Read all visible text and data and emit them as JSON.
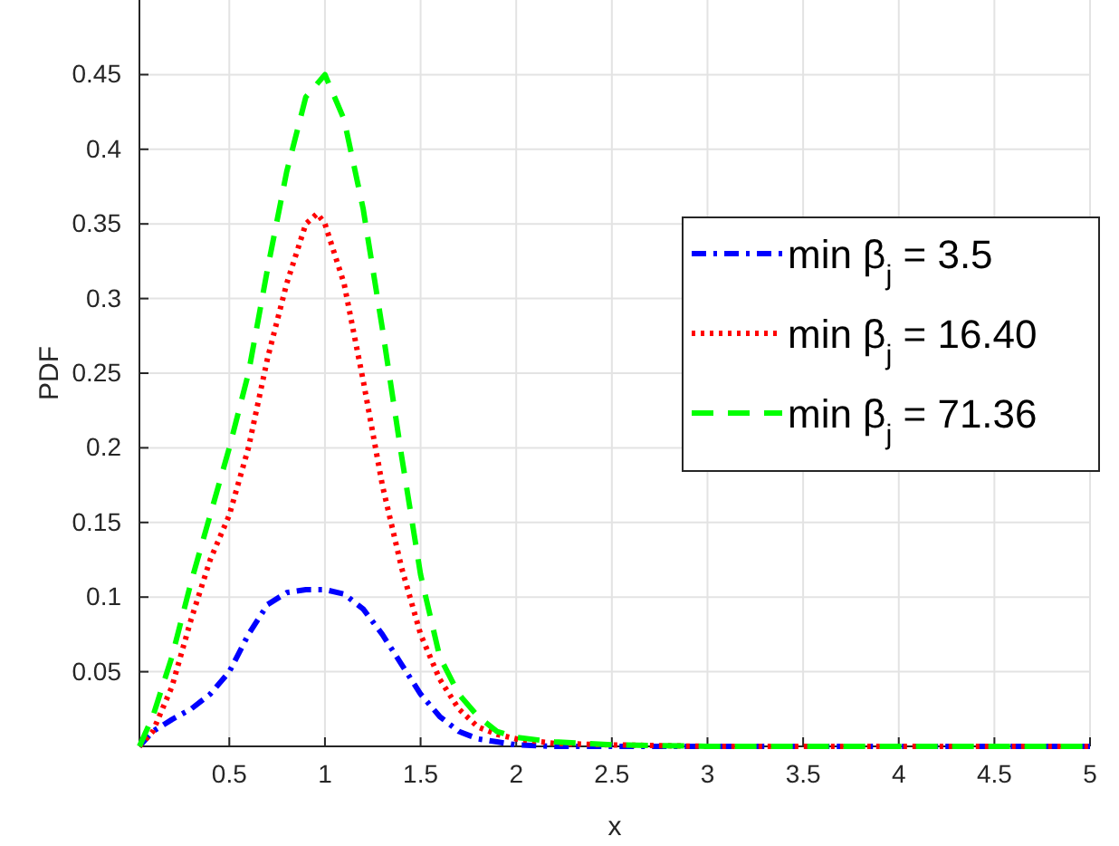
{
  "chart_data": {
    "type": "line",
    "xlabel": "x",
    "ylabel": "PDF",
    "xlim": [
      0.03,
      5
    ],
    "ylim": [
      0,
      0.5
    ],
    "xticks": [
      0.5,
      1,
      1.5,
      2,
      2.5,
      3,
      3.5,
      4,
      4.5,
      5
    ],
    "yticks": [
      0.05,
      0.1,
      0.15,
      0.2,
      0.25,
      0.3,
      0.35,
      0.4,
      0.45
    ],
    "grid": true,
    "legend": "right",
    "marker": "none",
    "series": [
      {
        "name": "min β$_{j}$ = 3.5",
        "color": "#0000ff",
        "line_style": "dashdot",
        "x": [
          0.03,
          0.1,
          0.2,
          0.3,
          0.4,
          0.5,
          0.6,
          0.7,
          0.8,
          0.9,
          1.0,
          1.1,
          1.2,
          1.3,
          1.4,
          1.5,
          1.6,
          1.7,
          1.8,
          1.9,
          2.0,
          2.2,
          2.5,
          3,
          5
        ],
        "values": [
          0,
          0.01,
          0.018,
          0.025,
          0.035,
          0.05,
          0.075,
          0.095,
          0.103,
          0.105,
          0.105,
          0.102,
          0.092,
          0.075,
          0.055,
          0.035,
          0.02,
          0.01,
          0.005,
          0.003,
          0.001,
          0,
          0,
          0,
          0
        ]
      },
      {
        "name": "min β$_{j}$ = 16.40",
        "color": "#ff0000",
        "line_style": "dotted",
        "x": [
          0.03,
          0.1,
          0.2,
          0.3,
          0.4,
          0.5,
          0.6,
          0.7,
          0.8,
          0.9,
          0.96,
          1.0,
          1.1,
          1.2,
          1.3,
          1.4,
          1.5,
          1.6,
          1.7,
          1.8,
          1.9,
          2.0,
          2.2,
          2.5,
          3,
          5
        ],
        "values": [
          0,
          0.01,
          0.04,
          0.085,
          0.125,
          0.155,
          0.2,
          0.26,
          0.31,
          0.35,
          0.357,
          0.35,
          0.31,
          0.245,
          0.175,
          0.12,
          0.075,
          0.045,
          0.025,
          0.013,
          0.008,
          0.005,
          0.002,
          0.001,
          0,
          0
        ]
      },
      {
        "name": "min β$_{j}$ = 71.36",
        "color": "#00ff00",
        "line_style": "dashed",
        "x": [
          0.03,
          0.1,
          0.2,
          0.3,
          0.4,
          0.5,
          0.6,
          0.7,
          0.8,
          0.9,
          1.0,
          1.1,
          1.2,
          1.3,
          1.4,
          1.5,
          1.6,
          1.7,
          1.8,
          1.9,
          2.0,
          2.2,
          2.5,
          3,
          5
        ],
        "values": [
          0,
          0.02,
          0.06,
          0.11,
          0.155,
          0.2,
          0.25,
          0.32,
          0.385,
          0.435,
          0.45,
          0.42,
          0.36,
          0.28,
          0.195,
          0.115,
          0.06,
          0.035,
          0.02,
          0.01,
          0.006,
          0.003,
          0.001,
          0,
          0
        ]
      }
    ]
  }
}
